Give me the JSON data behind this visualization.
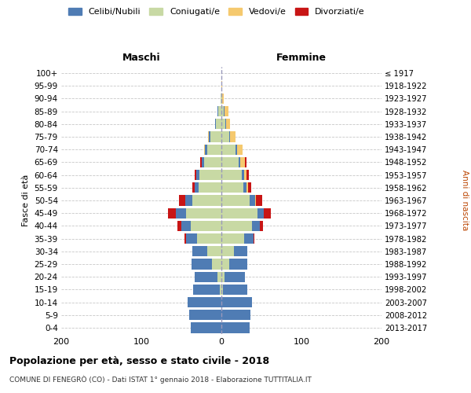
{
  "age_groups": [
    "0-4",
    "5-9",
    "10-14",
    "15-19",
    "20-24",
    "25-29",
    "30-34",
    "35-39",
    "40-44",
    "45-49",
    "50-54",
    "55-59",
    "60-64",
    "65-69",
    "70-74",
    "75-79",
    "80-84",
    "85-89",
    "90-94",
    "95-99",
    "100+"
  ],
  "birth_years": [
    "2013-2017",
    "2008-2012",
    "2003-2007",
    "1998-2002",
    "1993-1997",
    "1988-1992",
    "1983-1987",
    "1978-1982",
    "1973-1977",
    "1968-1972",
    "1963-1967",
    "1958-1962",
    "1953-1957",
    "1948-1952",
    "1943-1947",
    "1938-1942",
    "1933-1937",
    "1928-1932",
    "1923-1927",
    "1918-1922",
    "≤ 1917"
  ],
  "male": {
    "celibi": [
      38,
      40,
      42,
      33,
      28,
      25,
      18,
      14,
      12,
      13,
      9,
      5,
      4,
      3,
      3,
      2,
      1,
      1,
      0,
      0,
      0
    ],
    "coniugati": [
      0,
      0,
      0,
      2,
      5,
      12,
      18,
      30,
      38,
      44,
      36,
      28,
      27,
      22,
      18,
      14,
      7,
      4,
      1,
      0,
      0
    ],
    "vedovi": [
      0,
      0,
      0,
      0,
      0,
      0,
      0,
      0,
      0,
      0,
      0,
      0,
      0,
      0,
      1,
      1,
      0,
      0,
      0,
      0,
      0
    ],
    "divorziati": [
      0,
      0,
      0,
      0,
      0,
      0,
      0,
      2,
      5,
      10,
      8,
      3,
      2,
      1,
      0,
      0,
      0,
      0,
      0,
      0,
      0
    ]
  },
  "female": {
    "nubili": [
      35,
      36,
      38,
      30,
      25,
      22,
      16,
      12,
      10,
      8,
      7,
      4,
      3,
      2,
      2,
      1,
      1,
      1,
      0,
      0,
      0
    ],
    "coniugate": [
      0,
      0,
      0,
      2,
      4,
      10,
      16,
      28,
      38,
      45,
      35,
      27,
      25,
      22,
      18,
      10,
      5,
      3,
      1,
      0,
      0
    ],
    "vedove": [
      0,
      0,
      0,
      0,
      0,
      0,
      0,
      0,
      0,
      0,
      1,
      2,
      3,
      5,
      6,
      7,
      5,
      5,
      2,
      1,
      0
    ],
    "divorziate": [
      0,
      0,
      0,
      0,
      0,
      0,
      0,
      1,
      4,
      9,
      8,
      4,
      3,
      2,
      0,
      0,
      0,
      0,
      0,
      0,
      0
    ]
  },
  "colors": {
    "celibi_nubili": "#4f7cb4",
    "coniugati": "#c8d9a4",
    "vedovi": "#f5c96e",
    "divorziati": "#c81515"
  },
  "xlim": 200,
  "title": "Popolazione per età, sesso e stato civile - 2018",
  "subtitle": "COMUNE DI FENEGRÒ (CO) - Dati ISTAT 1° gennaio 2018 - Elaborazione TUTTITALIA.IT",
  "label_maschi": "Maschi",
  "label_femmine": "Femmine",
  "label_fasce": "Fasce di età",
  "label_anni": "Anni di nascita",
  "background_color": "#ffffff",
  "grid_color": "#c8c8c8"
}
